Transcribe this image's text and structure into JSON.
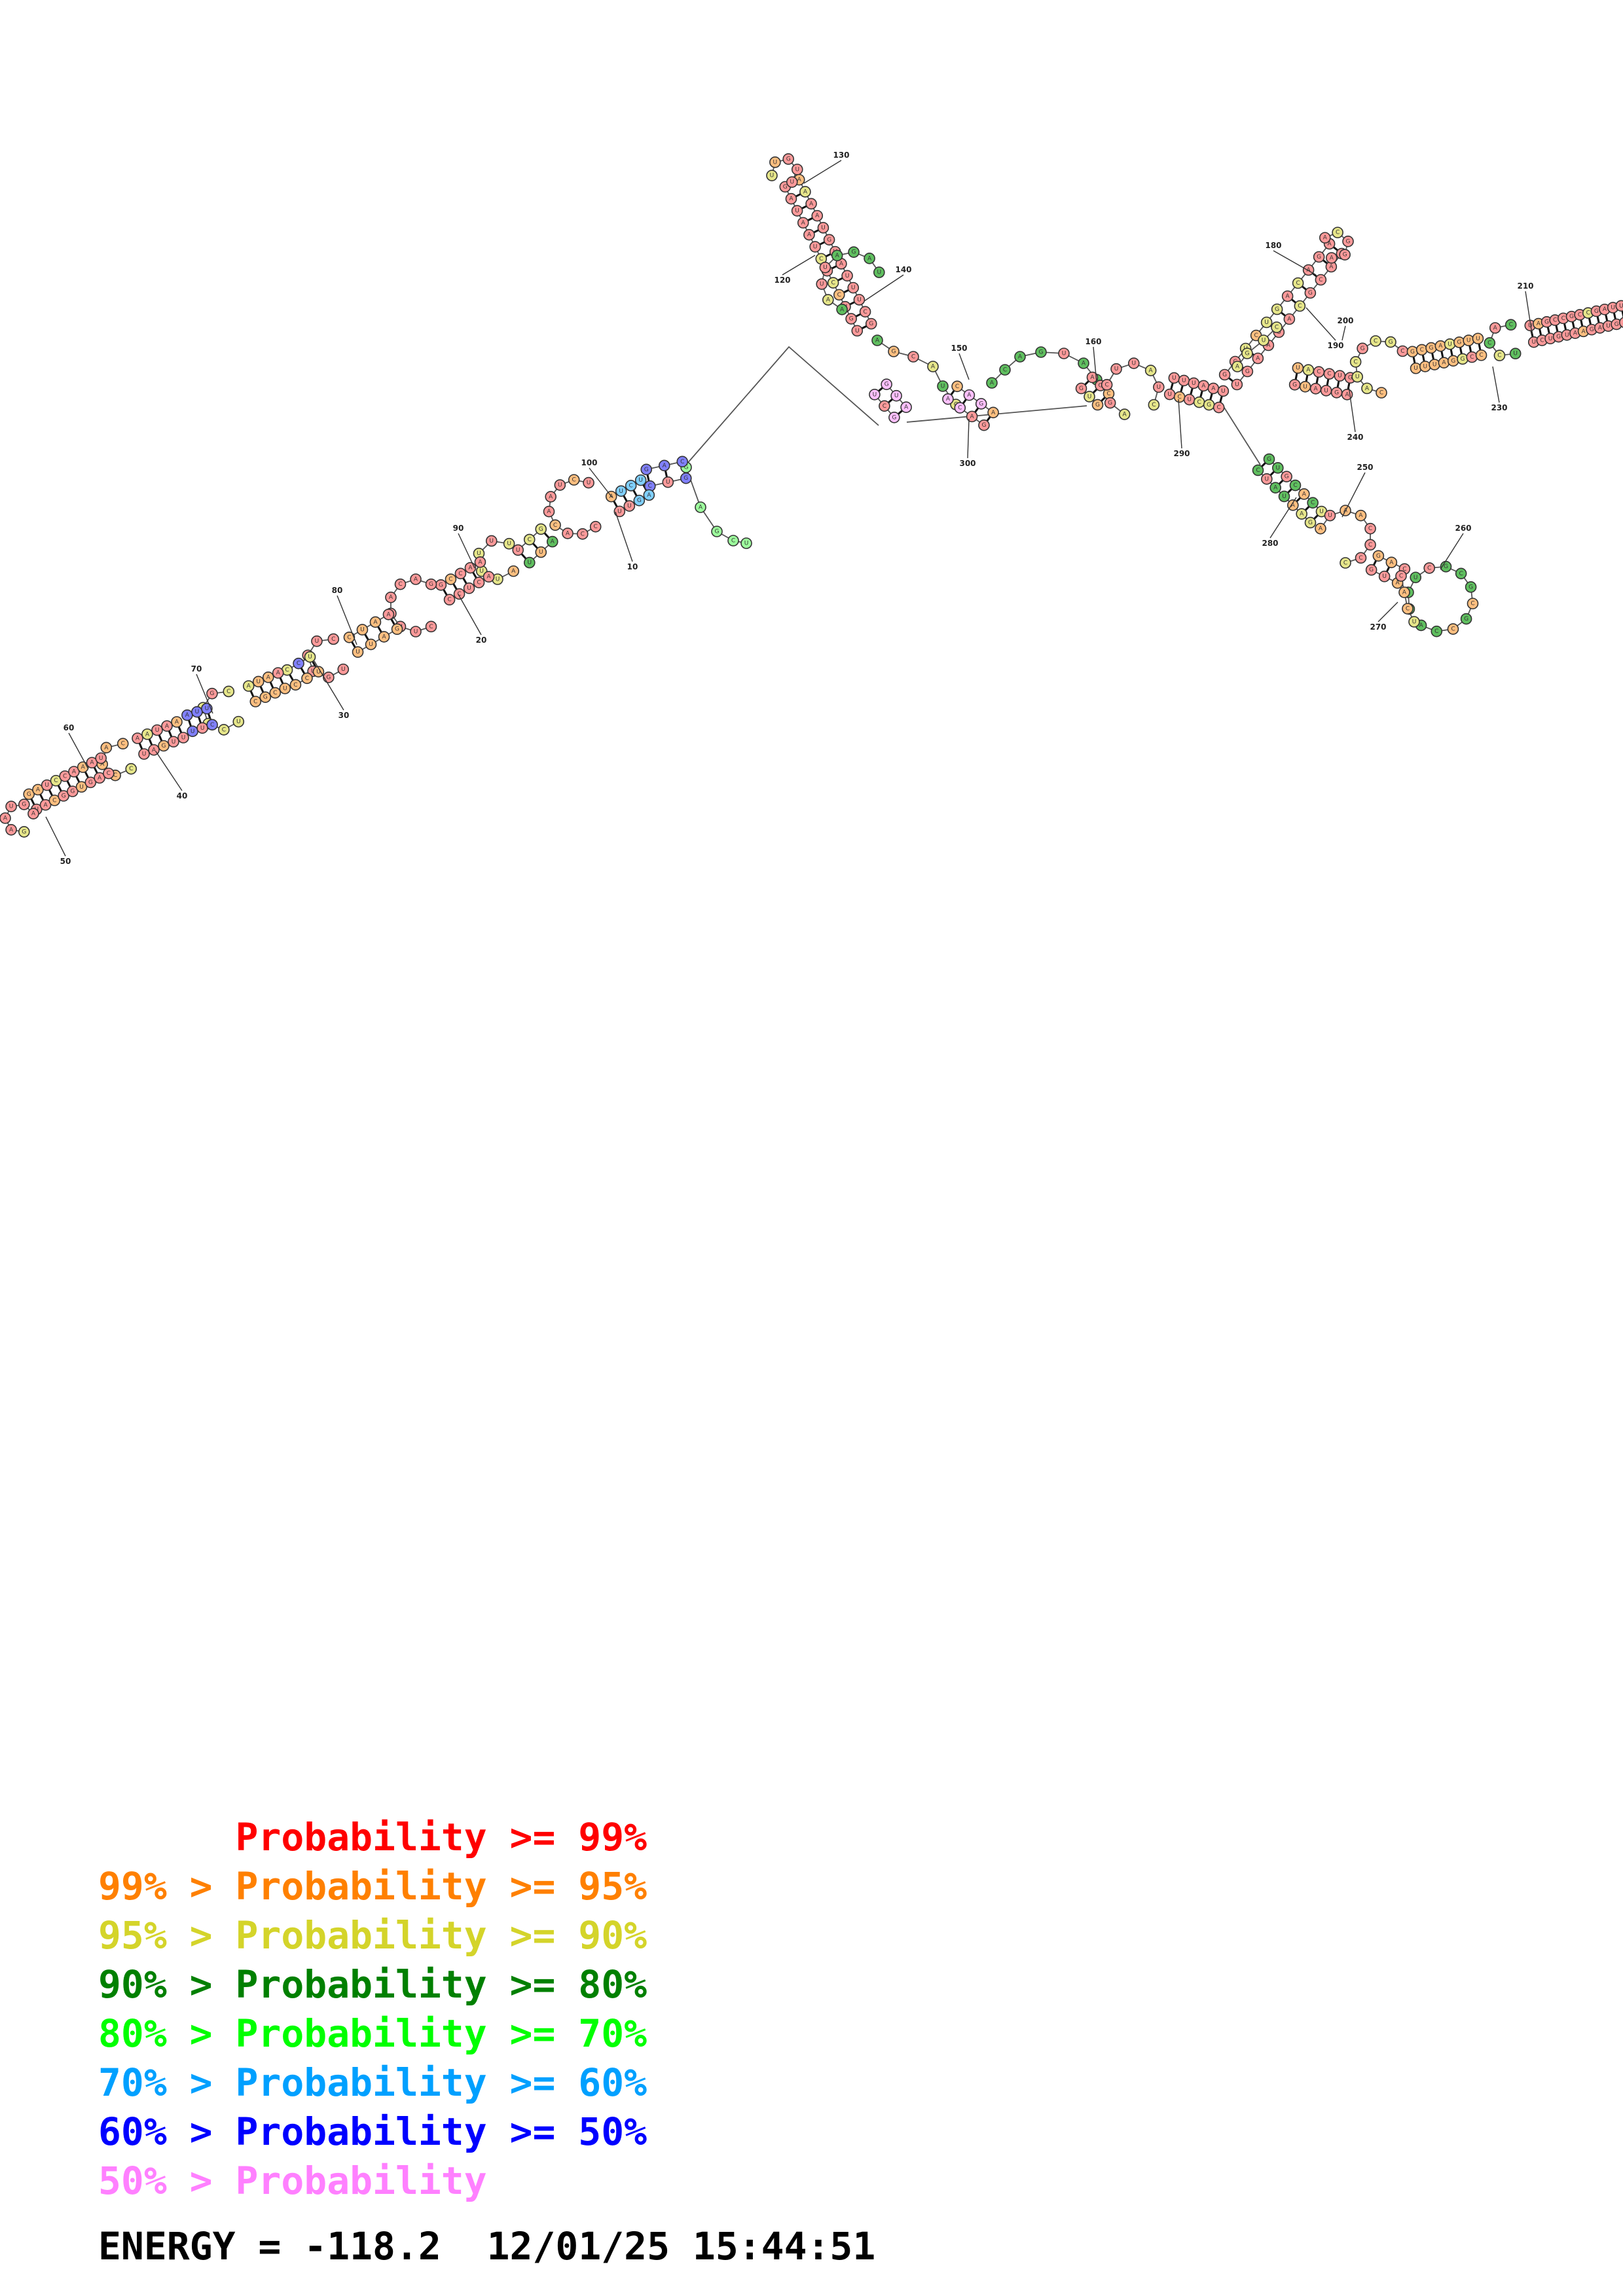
{
  "diagram": {
    "type": "rna-secondary-structure",
    "index_labels": [
      "10",
      "20",
      "30",
      "40",
      "50",
      "60",
      "70",
      "80",
      "90",
      "100",
      "120",
      "130",
      "140",
      "150",
      "160",
      "180",
      "190",
      "200",
      "210",
      "230",
      "240",
      "250",
      "260",
      "270",
      "280",
      "290",
      "300"
    ]
  },
  "legend": {
    "items": [
      {
        "prefix": "      ",
        "label": "Probability >= 99%",
        "color": "#ff0000"
      },
      {
        "prefix": "99% > ",
        "label": "Probability >= 95%",
        "color": "#ff8000"
      },
      {
        "prefix": "95% > ",
        "label": "Probability >= 90%",
        "color": "#d4d42a"
      },
      {
        "prefix": "90% > ",
        "label": "Probability >= 80%",
        "color": "#008000"
      },
      {
        "prefix": "80% > ",
        "label": "Probability >= 70%",
        "color": "#00ff00"
      },
      {
        "prefix": "70% > ",
        "label": "Probability >= 60%",
        "color": "#00a0ff"
      },
      {
        "prefix": "60% > ",
        "label": "Probability >= 50%",
        "color": "#0000ff"
      },
      {
        "prefix": "50% > ",
        "label": "Probability",
        "color": "#ff80ff"
      }
    ]
  },
  "footer": {
    "energy": "ENERGY = -118.2",
    "timestamp": "12/01/25 15:44:51"
  }
}
